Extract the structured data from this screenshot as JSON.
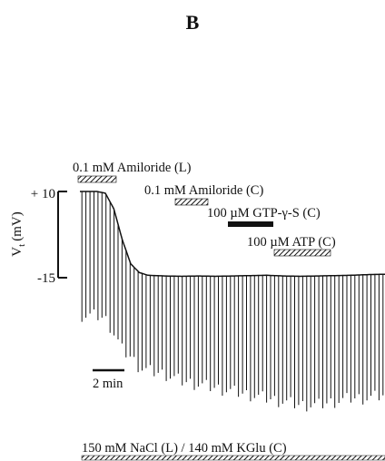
{
  "chart_data": {
    "type": "line",
    "panel_label": "B",
    "ylabel": "Vt (mV)",
    "ylabel_main": "V",
    "ylabel_sub": "t",
    "ylabel_unit": "(mV)",
    "yticks": [
      "+ 10",
      "-15"
    ],
    "ylim": [
      -15,
      10
    ],
    "scale_bar": "2 min",
    "bath_label": "150 mM NaCl (L) / 140 mM KGlu (C)",
    "annotations": [
      {
        "text": "0.1 mM Amiloride (L)",
        "style": "hatched"
      },
      {
        "text": "0.1 mM Amiloride (C)",
        "style": "hatched"
      },
      {
        "text": "100 µM GTP-γ-S (C)",
        "style": "solid"
      },
      {
        "text": "100 µM ATP (C)",
        "style": "hatched"
      }
    ],
    "series": [
      {
        "x_min": [
          0,
          0.5,
          1.0,
          1.5,
          2.0,
          2.5,
          3.0,
          3.5,
          4.0,
          5.0,
          6.0,
          7.0,
          8.0,
          9.0,
          10.0,
          11.0,
          12.0,
          13.0,
          14.0,
          15.0,
          16.0,
          17.0,
          18.0
        ],
        "baseline_mV": [
          10,
          10,
          10,
          9.5,
          5,
          -4,
          -11,
          -13.5,
          -14.3,
          -14.5,
          -14.6,
          -14.5,
          -14.6,
          -14.5,
          -14.4,
          -14.3,
          -14.5,
          -14.6,
          -14.5,
          -14.4,
          -14.3,
          -14.1,
          -14.0
        ],
        "deflection_min_mV": [
          -26,
          -26,
          -26,
          -27,
          -31,
          -36,
          -38,
          -41,
          -42,
          -43,
          -45,
          -46,
          -47,
          -48,
          -49,
          -50,
          -51,
          -52,
          -52,
          -51,
          -50,
          -50,
          -49
        ]
      }
    ]
  }
}
